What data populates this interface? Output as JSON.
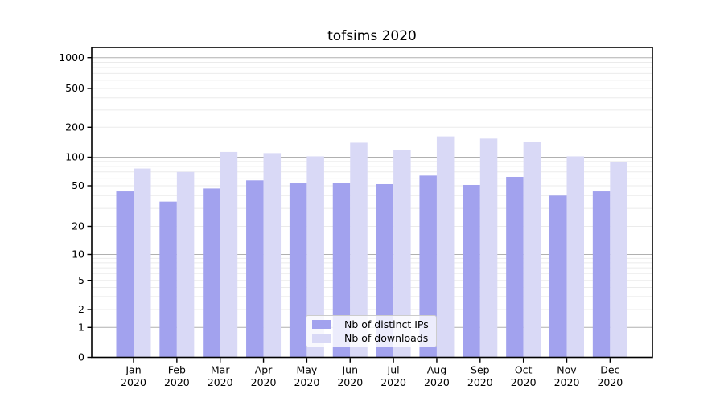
{
  "chart_data": {
    "type": "bar",
    "title": "tofsims 2020",
    "categories_month": [
      "Jan",
      "Feb",
      "Mar",
      "Apr",
      "May",
      "Jun",
      "Jul",
      "Aug",
      "Sep",
      "Oct",
      "Nov",
      "Dec"
    ],
    "categories_year": [
      "2020",
      "2020",
      "2020",
      "2020",
      "2020",
      "2020",
      "2020",
      "2020",
      "2020",
      "2020",
      "2020",
      "2020"
    ],
    "series": [
      {
        "name": "Nb of distinct IPs",
        "color": "#a2a2ee",
        "values": [
          44,
          35,
          47,
          57,
          53,
          54,
          52,
          64,
          51,
          62,
          40,
          44
        ]
      },
      {
        "name": "Nb of downloads",
        "color": "#d9d9f6",
        "values": [
          76,
          70,
          113,
          110,
          102,
          140,
          118,
          162,
          154,
          143,
          102,
          89
        ]
      }
    ],
    "y_ticks": [
      0,
      1,
      2,
      5,
      10,
      20,
      50,
      100,
      200,
      500,
      1000
    ],
    "y_minor_gridlines": [
      2,
      3,
      4,
      5,
      6,
      7,
      8,
      9,
      20,
      30,
      40,
      50,
      60,
      70,
      80,
      90,
      200,
      300,
      400,
      500,
      600,
      700,
      800,
      900
    ],
    "y_major_gridlines": [
      1,
      10,
      100,
      1000
    ],
    "y_scale": "symlog",
    "ylim": [
      0,
      1000
    ],
    "grid": true,
    "legend_position": "lower center",
    "colors": {
      "major_grid": "#b0b0b0",
      "minor_grid": "#ebebeb",
      "axis": "#000000",
      "text": "#000000",
      "background": "#ffffff"
    }
  }
}
